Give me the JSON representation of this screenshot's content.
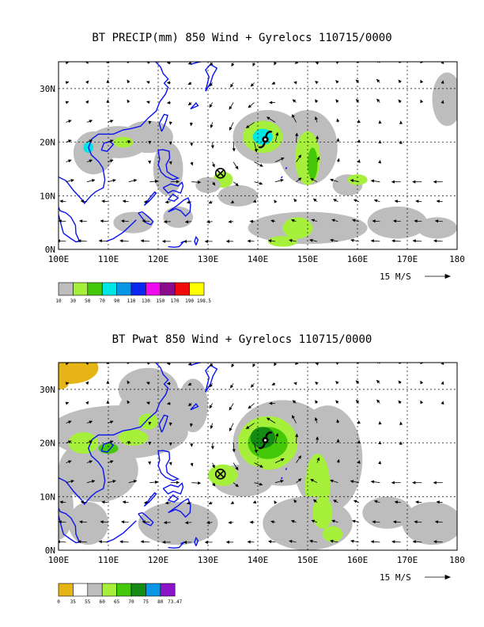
{
  "panels": [
    {
      "title": "BT PRECIP(mm) 850 Wind + Gyrelocs 110715/0000",
      "lat_labels": [
        "30N",
        "20N",
        "10N",
        "0N"
      ],
      "lon_labels": [
        "100E",
        "110E",
        "120E",
        "130E",
        "140E",
        "150E",
        "160E",
        "170E",
        "180"
      ],
      "vector_ref_label": "15 M/S",
      "legend": {
        "labels": [
          "10",
          "30",
          "50",
          "70",
          "90",
          "110",
          "130",
          "150",
          "170",
          "190",
          "198.5"
        ],
        "colors": [
          "#bdbdbd",
          "#a6f03c",
          "#46c80a",
          "#00e6e6",
          "#0a96e6",
          "#0a28f0",
          "#f00af0",
          "#8c0a8c",
          "#f00a0a",
          "#ffff00"
        ]
      },
      "markers": {
        "typhoon_lat": 20.5,
        "typhoon_lon": 141.5,
        "gyre_lat": 14.2,
        "gyre_lon": 132.5
      }
    },
    {
      "title": "BT Pwat 850 Wind + Gyrelocs 110715/0000",
      "lat_labels": [
        "30N",
        "20N",
        "10N",
        "0N"
      ],
      "lon_labels": [
        "100E",
        "110E",
        "120E",
        "130E",
        "140E",
        "150E",
        "160E",
        "170E",
        "180"
      ],
      "vector_ref_label": "15 M/S",
      "legend": {
        "labels": [
          "0",
          "35",
          "55",
          "60",
          "65",
          "70",
          "75",
          "80",
          "73.47"
        ],
        "colors": [
          "#e6b414",
          "#ffffff",
          "#bdbdbd",
          "#a6f03c",
          "#46c80a",
          "#148c14",
          "#0a96e6",
          "#8c14c8"
        ]
      },
      "markers": {
        "typhoon_lat": 20.5,
        "typhoon_lon": 141.5,
        "gyre_lat": 14.2,
        "gyre_lon": 132.5
      }
    }
  ],
  "map_extent": {
    "lon_min": 100,
    "lon_max": 180,
    "lat_min": 0,
    "lat_max": 35
  },
  "colors": {
    "coast": "#0a14f0",
    "frame": "#000000"
  }
}
